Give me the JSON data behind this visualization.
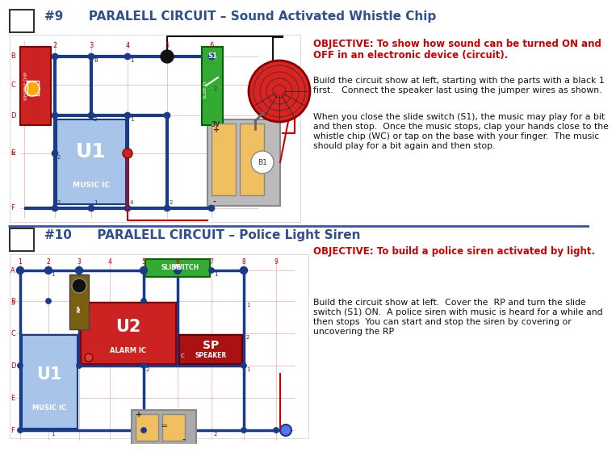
{
  "title9": "#9      PARALELL CIRCUIT – Sound Activated Whistle Chip",
  "title10": "#10      PARALELL CIRCUIT – Police Light Siren",
  "obj9_line1": "OBJECTIVE: To show how sound can be turned ON and",
  "obj9_line2": "OFF in an electronic device (circuit).",
  "obj9_body1": "Build the circuit show at left, starting with the parts with a black 1",
  "obj9_body2": "first.   Connect the speaker last using the jumper wires as shown.",
  "obj9_body3": "When you close the slide switch (S1), the music may play for a bit",
  "obj9_body4": "and then stop.  Once the music stops, clap your hands close to the",
  "obj9_body5": "whistle chip (WC) or tap on the base with your finger.  The music",
  "obj9_body6": "should play for a bit again and then stop.",
  "obj10_bold": "OBJECTIVE: To build a police siren activated by light.",
  "obj10_body1": "Build the circuit show at left.  Cover the  RP and turn the slide",
  "obj10_body2": "switch (S1) ON.  A police siren with music is heard for a while and",
  "obj10_body3": "then stops  You can start and stop the siren by covering or",
  "obj10_body4": "uncovering the RP",
  "bg": "#ffffff",
  "title_color": "#2f4f8f",
  "obj_color": "#cc0000",
  "body_color": "#111111",
  "divider_color": "#3355aa",
  "blue_wire": "#1a3a8a",
  "circuit_blue": "#a8c4e8",
  "red_comp": "#cc2222",
  "green_comp": "#33aa33",
  "batt_gray": "#aaaaaa",
  "batt_cell": "#f0c060",
  "sp_dark_red": "#aa1111"
}
